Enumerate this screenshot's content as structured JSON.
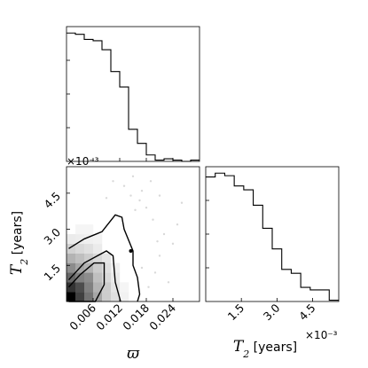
{
  "chart_data": {
    "type": "corner",
    "parameters": [
      {
        "symbol": "ϖ",
        "label": "ϖ",
        "range": [
          0,
          0.03
        ],
        "scale_factor": "×10⁻³"
      },
      {
        "symbol": "T2",
        "label_main": "T",
        "label_sub": "2",
        "label_unit": " [years]",
        "range": [
          0,
          5.6
        ],
        "scale_factor": "×10⁻³"
      }
    ],
    "x_ticks": [
      {
        "value": 0.006,
        "label": "0.006"
      },
      {
        "value": 0.012,
        "label": "0.012"
      },
      {
        "value": 0.018,
        "label": "0.018"
      },
      {
        "value": 0.024,
        "label": "0.024"
      }
    ],
    "t2_ticks": [
      {
        "value": 1.5,
        "label": "1.5"
      },
      {
        "value": 3.0,
        "label": "3.0"
      },
      {
        "value": 4.5,
        "label": "4.5"
      }
    ],
    "hist_varpi": {
      "edges": [
        0,
        0.002,
        0.004,
        0.006,
        0.008,
        0.01,
        0.012,
        0.014,
        0.016,
        0.018,
        0.02,
        0.022,
        0.024,
        0.026,
        0.028,
        0.03
      ],
      "counts": [
        1.0,
        0.99,
        0.95,
        0.94,
        0.87,
        0.7,
        0.58,
        0.25,
        0.14,
        0.05,
        0.01,
        0.02,
        0.01,
        0.0,
        0.01
      ],
      "ylim": [
        0,
        1.05
      ]
    },
    "hist_T2": {
      "edges": [
        0,
        0.4,
        0.8,
        1.2,
        1.6,
        2.0,
        2.4,
        2.8,
        3.2,
        3.6,
        4.0,
        4.4,
        4.8,
        5.2,
        5.6
      ],
      "counts": [
        0.97,
        1.0,
        0.98,
        0.9,
        0.87,
        0.75,
        0.57,
        0.41,
        0.25,
        0.22,
        0.11,
        0.09,
        0.09,
        0.01
      ],
      "ylim": [
        0,
        1.05
      ]
    },
    "density_cells": [
      {
        "x": 0,
        "y": 0,
        "v": 1.0
      },
      {
        "x": 1,
        "y": 0,
        "v": 0.75
      },
      {
        "x": 2,
        "y": 0,
        "v": 0.55
      },
      {
        "x": 3,
        "y": 0,
        "v": 0.35
      },
      {
        "x": 4,
        "y": 0,
        "v": 0.2
      },
      {
        "x": 5,
        "y": 0,
        "v": 0.12
      },
      {
        "x": 6,
        "y": 0,
        "v": 0.05
      },
      {
        "x": 0,
        "y": 1,
        "v": 0.8
      },
      {
        "x": 1,
        "y": 1,
        "v": 0.7
      },
      {
        "x": 2,
        "y": 1,
        "v": 0.5
      },
      {
        "x": 3,
        "y": 1,
        "v": 0.3
      },
      {
        "x": 4,
        "y": 1,
        "v": 0.2
      },
      {
        "x": 5,
        "y": 1,
        "v": 0.1
      },
      {
        "x": 6,
        "y": 1,
        "v": 0.04
      },
      {
        "x": 0,
        "y": 2,
        "v": 0.6
      },
      {
        "x": 1,
        "y": 2,
        "v": 0.5
      },
      {
        "x": 2,
        "y": 2,
        "v": 0.45
      },
      {
        "x": 3,
        "y": 2,
        "v": 0.25
      },
      {
        "x": 4,
        "y": 2,
        "v": 0.15
      },
      {
        "x": 5,
        "y": 2,
        "v": 0.08
      },
      {
        "x": 0,
        "y": 3,
        "v": 0.45
      },
      {
        "x": 1,
        "y": 3,
        "v": 0.35
      },
      {
        "x": 2,
        "y": 3,
        "v": 0.3
      },
      {
        "x": 3,
        "y": 3,
        "v": 0.2
      },
      {
        "x": 4,
        "y": 3,
        "v": 0.12
      },
      {
        "x": 5,
        "y": 3,
        "v": 0.06
      },
      {
        "x": 0,
        "y": 4,
        "v": 0.3
      },
      {
        "x": 1,
        "y": 4,
        "v": 0.25
      },
      {
        "x": 2,
        "y": 4,
        "v": 0.2
      },
      {
        "x": 3,
        "y": 4,
        "v": 0.15
      },
      {
        "x": 4,
        "y": 4,
        "v": 0.1
      },
      {
        "x": 0,
        "y": 5,
        "v": 0.18
      },
      {
        "x": 1,
        "y": 5,
        "v": 0.15
      },
      {
        "x": 2,
        "y": 5,
        "v": 0.12
      },
      {
        "x": 3,
        "y": 5,
        "v": 0.08
      },
      {
        "x": 0,
        "y": 6,
        "v": 0.08
      },
      {
        "x": 1,
        "y": 6,
        "v": 0.07
      },
      {
        "x": 2,
        "y": 6,
        "v": 0.06
      },
      {
        "x": 3,
        "y": 6,
        "v": 0.05
      },
      {
        "x": 1,
        "y": 7,
        "v": 0.04
      },
      {
        "x": 2,
        "y": 7,
        "v": 0.04
      }
    ],
    "density_cell_size": {
      "varpi": 0.002,
      "T2": 0.4
    },
    "contours": [
      [
        [
          0.0005,
          0.0
        ],
        [
          0.0065,
          0.0
        ],
        [
          0.0085,
          0.7
        ],
        [
          0.0085,
          1.6
        ],
        [
          0.0062,
          1.6
        ],
        [
          0.003,
          1.1
        ],
        [
          0.0005,
          0.6
        ]
      ],
      [
        [
          0.0005,
          0.9
        ],
        [
          0.004,
          1.6
        ],
        [
          0.009,
          2.1
        ],
        [
          0.0105,
          1.9
        ],
        [
          0.011,
          0.8
        ],
        [
          0.0122,
          0.0
        ]
      ],
      [
        [
          0.0005,
          2.2
        ],
        [
          0.004,
          2.6
        ],
        [
          0.008,
          2.9
        ],
        [
          0.011,
          3.6
        ],
        [
          0.0125,
          3.5
        ],
        [
          0.013,
          3.0
        ],
        [
          0.015,
          2.1
        ],
        [
          0.015,
          1.5
        ],
        [
          0.016,
          1.0
        ],
        [
          0.0165,
          0.3
        ],
        [
          0.016,
          0.0
        ]
      ]
    ],
    "marker": {
      "x": 0.0145,
      "y": 2.1
    },
    "scatter_points": [
      [
        0.017,
        4.6
      ],
      [
        0.019,
        5.0
      ],
      [
        0.015,
        5.2
      ],
      [
        0.021,
        4.4
      ],
      [
        0.018,
        3.9
      ],
      [
        0.0165,
        4.2
      ],
      [
        0.0195,
        3.4
      ],
      [
        0.022,
        2.8
      ],
      [
        0.024,
        2.4
      ],
      [
        0.02,
        1.2
      ],
      [
        0.023,
        0.8
      ],
      [
        0.0185,
        0.6
      ],
      [
        0.026,
        4.1
      ],
      [
        0.013,
        4.8
      ],
      [
        0.0105,
        5.0
      ],
      [
        0.0155,
        3.8
      ],
      [
        0.021,
        1.9
      ],
      [
        0.017,
        1.4
      ],
      [
        0.025,
        3.2
      ],
      [
        0.009,
        4.3
      ],
      [
        0.0145,
        4.4
      ],
      [
        0.0205,
        2.5
      ]
    ]
  }
}
